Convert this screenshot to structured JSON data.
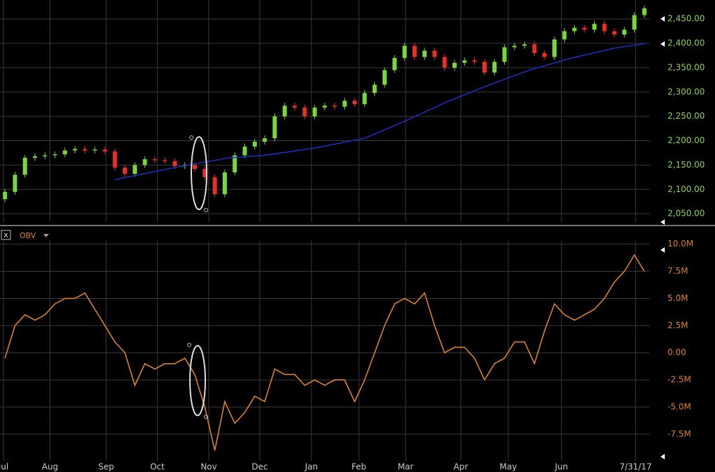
{
  "chart_data": [
    {
      "type": "candlestick",
      "x": [
        2,
        6,
        10,
        14,
        18,
        22,
        26,
        30,
        34,
        38,
        42,
        46,
        50,
        54,
        58,
        62,
        66,
        70,
        74,
        78,
        82,
        86,
        90,
        94,
        98,
        102,
        106,
        110,
        114,
        118,
        122,
        126,
        130,
        134,
        138,
        142,
        146,
        150,
        154,
        158,
        162,
        166,
        170,
        174,
        178,
        182,
        186,
        190,
        194,
        198,
        202,
        206,
        210,
        214,
        218,
        222,
        226,
        230,
        234,
        238,
        242,
        246,
        250,
        254,
        258
      ],
      "open": [
        2080,
        2095,
        2130,
        2165,
        2168,
        2170,
        2172,
        2180,
        2183,
        2180,
        2182,
        2178,
        2145,
        2132,
        2150,
        2162,
        2160,
        2158,
        2148,
        2150,
        2142,
        2125,
        2090,
        2135,
        2170,
        2188,
        2198,
        2205,
        2250,
        2272,
        2268,
        2250,
        2268,
        2272,
        2270,
        2282,
        2275,
        2298,
        2315,
        2345,
        2370,
        2395,
        2372,
        2385,
        2372,
        2350,
        2360,
        2365,
        2362,
        2340,
        2362,
        2392,
        2395,
        2398,
        2380,
        2372,
        2408,
        2425,
        2432,
        2428,
        2440,
        2425,
        2418,
        2428,
        2458
      ],
      "high": [
        2101,
        2136,
        2171,
        2174,
        2176,
        2178,
        2186,
        2189,
        2189,
        2188,
        2188,
        2184,
        2151,
        2156,
        2168,
        2168,
        2166,
        2164,
        2156,
        2156,
        2148,
        2131,
        2141,
        2176,
        2194,
        2204,
        2211,
        2256,
        2278,
        2278,
        2274,
        2274,
        2278,
        2278,
        2288,
        2288,
        2304,
        2321,
        2351,
        2376,
        2401,
        2401,
        2391,
        2391,
        2378,
        2366,
        2371,
        2371,
        2368,
        2368,
        2398,
        2401,
        2404,
        2404,
        2386,
        2414,
        2431,
        2438,
        2438,
        2446,
        2446,
        2431,
        2434,
        2464,
        2478
      ],
      "low": [
        2074,
        2089,
        2124,
        2159,
        2162,
        2164,
        2166,
        2174,
        2174,
        2174,
        2172,
        2139,
        2126,
        2126,
        2144,
        2154,
        2152,
        2142,
        2142,
        2136,
        2119,
        2084,
        2084,
        2129,
        2164,
        2182,
        2192,
        2199,
        2244,
        2262,
        2244,
        2244,
        2262,
        2264,
        2264,
        2269,
        2269,
        2292,
        2309,
        2339,
        2364,
        2366,
        2366,
        2366,
        2344,
        2344,
        2354,
        2356,
        2334,
        2334,
        2356,
        2386,
        2389,
        2374,
        2366,
        2366,
        2402,
        2419,
        2422,
        2422,
        2419,
        2412,
        2412,
        2422,
        2452
      ],
      "close": [
        2095,
        2130,
        2165,
        2168,
        2170,
        2172,
        2180,
        2183,
        2180,
        2182,
        2178,
        2145,
        2132,
        2150,
        2162,
        2160,
        2158,
        2148,
        2150,
        2142,
        2125,
        2090,
        2135,
        2170,
        2188,
        2198,
        2205,
        2250,
        2272,
        2268,
        2250,
        2268,
        2272,
        2270,
        2282,
        2275,
        2298,
        2315,
        2345,
        2370,
        2395,
        2372,
        2385,
        2372,
        2350,
        2360,
        2365,
        2362,
        2340,
        2362,
        2392,
        2395,
        2398,
        2380,
        2372,
        2408,
        2425,
        2432,
        2428,
        2440,
        2425,
        2418,
        2428,
        2458,
        2472
      ],
      "up_color": "#7bd63c",
      "down_color": "#e8302a",
      "series": [
        {
          "color": "#1f2fbf",
          "x": [
            46,
            70,
            92,
            106,
            126,
            146,
            162,
            179,
            196,
            212,
            229,
            246,
            259
          ],
          "values": [
            2120,
            2145,
            2165,
            2170,
            2185,
            2205,
            2240,
            2280,
            2315,
            2345,
            2370,
            2390,
            2400
          ]
        }
      ],
      "xlim": [
        0,
        260
      ],
      "xticks": [
        {
          "value": 1.4,
          "label": "Jul"
        },
        {
          "value": 20,
          "label": "Aug"
        },
        {
          "value": 42.5,
          "label": "Sep"
        },
        {
          "value": 63,
          "label": "Oct"
        },
        {
          "value": 83.6,
          "label": "Nov"
        },
        {
          "value": 104,
          "label": "Dec"
        },
        {
          "value": 124.7,
          "label": "Jan"
        },
        {
          "value": 143.7,
          "label": "Feb"
        },
        {
          "value": 162.4,
          "label": "Mar"
        },
        {
          "value": 184.5,
          "label": "Apr"
        },
        {
          "value": 203.5,
          "label": "May"
        },
        {
          "value": 224.8,
          "label": "Jun"
        },
        {
          "value": 254.5,
          "label": "7/31/17"
        }
      ],
      "ylim": [
        2033,
        2489
      ],
      "yticks": [
        {
          "value": 2050,
          "label": "2,050.00"
        },
        {
          "value": 2100,
          "label": "2,100.00"
        },
        {
          "value": 2150,
          "label": "2,150.00"
        },
        {
          "value": 2200,
          "label": "2,200.00"
        },
        {
          "value": 2250,
          "label": "2,250.00"
        },
        {
          "value": 2300,
          "label": "2,300.00"
        },
        {
          "value": 2350,
          "label": "2,350.00"
        },
        {
          "value": 2400,
          "label": "2,400.00"
        },
        {
          "value": 2450,
          "label": "2,450.00"
        }
      ],
      "grid": true
    },
    {
      "type": "line",
      "title": "OBV",
      "x": [
        2,
        6,
        10,
        14,
        18,
        22,
        26,
        30,
        34,
        38,
        42,
        46,
        50,
        54,
        58,
        62,
        66,
        70,
        74,
        78,
        82,
        86,
        90,
        94,
        98,
        102,
        106,
        110,
        114,
        118,
        122,
        126,
        130,
        134,
        138,
        142,
        146,
        150,
        154,
        158,
        162,
        166,
        170,
        174,
        178,
        182,
        186,
        190,
        194,
        198,
        202,
        206,
        210,
        214,
        218,
        222,
        226,
        230,
        234,
        238,
        242,
        246,
        250,
        254,
        258
      ],
      "series": [
        {
          "name": "OBV",
          "color": "#d9822b",
          "values": [
            -500000,
            2500000,
            3500000,
            3000000,
            3500000,
            4500000,
            5000000,
            5000000,
            5500000,
            4000000,
            2500000,
            1000000,
            0,
            -3000000,
            -1000000,
            -1500000,
            -1000000,
            -1000000,
            -500000,
            -2000000,
            -5000000,
            -9000000,
            -4500000,
            -6500000,
            -5500000,
            -4000000,
            -4500000,
            -1500000,
            -2000000,
            -2000000,
            -3000000,
            -2500000,
            -3000000,
            -2500000,
            -2500000,
            -4500000,
            -2500000,
            0,
            2500000,
            4500000,
            5000000,
            4500000,
            5500000,
            2500000,
            0,
            500000,
            500000,
            -500000,
            -2500000,
            -1000000,
            -500000,
            1000000,
            1000000,
            -1000000,
            2000000,
            4500000,
            3500000,
            3000000,
            3500000,
            4000000,
            5000000,
            6500000,
            7500000,
            9000000,
            7500000
          ]
        }
      ],
      "xlim": [
        0,
        260
      ],
      "ylim": [
        -9950000,
        10300000
      ],
      "yticks": [
        {
          "value": -7500000,
          "label": "-7.5M"
        },
        {
          "value": -5000000,
          "label": "-5.0M"
        },
        {
          "value": -2500000,
          "label": "-2.5M"
        },
        {
          "value": 0,
          "label": "0.00"
        },
        {
          "value": 2500000,
          "label": "2.5M"
        },
        {
          "value": 5000000,
          "label": "5.0M"
        },
        {
          "value": 7500000,
          "label": "7.5M"
        },
        {
          "value": 10000000,
          "label": "10.0M"
        }
      ],
      "grid": true
    }
  ]
}
